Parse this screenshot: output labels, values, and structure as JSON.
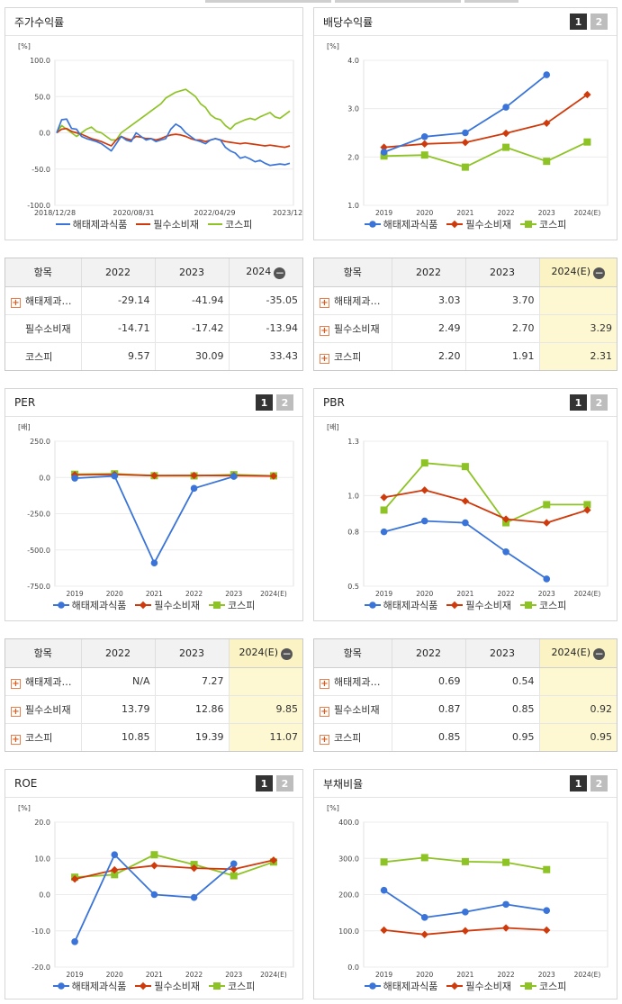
{
  "series_names": [
    "해태제과식품",
    "필수소비재",
    "코스피"
  ],
  "colors": {
    "company": "#3a74d8",
    "sector": "#cf3a0c",
    "index": "#8ec326"
  },
  "page_buttons": [
    "1",
    "2"
  ],
  "panels": {
    "stock": {
      "title": "주가수익률"
    },
    "dividend": {
      "title": "배당수익률"
    },
    "per": {
      "title": "PER"
    },
    "pbr": {
      "title": "PBR"
    },
    "roe": {
      "title": "ROE"
    },
    "debt": {
      "title": "부채비율"
    }
  },
  "tables": {
    "stock": {
      "headers": [
        "항목",
        "2022",
        "2023",
        "2024"
      ],
      "rows": [
        {
          "label": "해태제과…",
          "v": [
            "-29.14",
            "-41.94",
            "-35.05"
          ]
        },
        {
          "label": "필수소비재",
          "v": [
            "-14.71",
            "-17.42",
            "-13.94"
          ]
        },
        {
          "label": "코스피",
          "v": [
            "9.57",
            "30.09",
            "33.43"
          ]
        }
      ]
    },
    "dividend": {
      "headers": [
        "항목",
        "2022",
        "2023",
        "2024(E)"
      ],
      "rows": [
        {
          "label": "해태제과…",
          "v": [
            "3.03",
            "3.70",
            ""
          ]
        },
        {
          "label": "필수소비재",
          "v": [
            "2.49",
            "2.70",
            "3.29"
          ]
        },
        {
          "label": "코스피",
          "v": [
            "2.20",
            "1.91",
            "2.31"
          ]
        }
      ]
    },
    "per": {
      "headers": [
        "항목",
        "2022",
        "2023",
        "2024(E)"
      ],
      "rows": [
        {
          "label": "해태제과…",
          "v": [
            "N/A",
            "7.27",
            ""
          ]
        },
        {
          "label": "필수소비재",
          "v": [
            "13.79",
            "12.86",
            "9.85"
          ]
        },
        {
          "label": "코스피",
          "v": [
            "10.85",
            "19.39",
            "11.07"
          ]
        }
      ]
    },
    "pbr": {
      "headers": [
        "항목",
        "2022",
        "2023",
        "2024(E)"
      ],
      "rows": [
        {
          "label": "해태제과…",
          "v": [
            "0.69",
            "0.54",
            ""
          ]
        },
        {
          "label": "필수소비재",
          "v": [
            "0.87",
            "0.85",
            "0.92"
          ]
        },
        {
          "label": "코스피",
          "v": [
            "0.85",
            "0.95",
            "0.95"
          ]
        }
      ]
    }
  },
  "chart_data": [
    {
      "id": "stock",
      "type": "line",
      "title": "주가수익률",
      "ylabel": "[%]",
      "ylim": [
        -100,
        100
      ],
      "yticks": [
        "100.0",
        "50.0",
        "0.0",
        "-50.0",
        "-100.0"
      ],
      "xticks": [
        "2018/12/28",
        "2020/08/31",
        "2022/04/29",
        "2023/12/28"
      ],
      "series": [
        {
          "name": "해태제과식품",
          "values": [
            0,
            18,
            19,
            6,
            5,
            -5,
            -8,
            -10,
            -12,
            -15,
            -20,
            -25,
            -15,
            -5,
            -10,
            -12,
            0,
            -5,
            -10,
            -8,
            -12,
            -10,
            -8,
            5,
            12,
            8,
            0,
            -5,
            -10,
            -12,
            -15,
            -10,
            -8,
            -10,
            -20,
            -25,
            -28,
            -35,
            -33,
            -36,
            -40,
            -38,
            -42,
            -45,
            -44,
            -43,
            -44,
            -42
          ]
        },
        {
          "name": "필수소비재",
          "values": [
            0,
            5,
            6,
            2,
            0,
            -2,
            -5,
            -8,
            -10,
            -12,
            -15,
            -18,
            -10,
            -5,
            -8,
            -10,
            -5,
            -6,
            -8,
            -8,
            -10,
            -8,
            -5,
            -3,
            -2,
            -3,
            -5,
            -8,
            -10,
            -10,
            -12,
            -10,
            -8,
            -10,
            -12,
            -13,
            -14,
            -15,
            -14,
            -15,
            -16,
            -17,
            -18,
            -17,
            -18,
            -19,
            -20,
            -18
          ]
        },
        {
          "name": "코스피",
          "values": [
            0,
            10,
            5,
            0,
            -5,
            0,
            5,
            8,
            2,
            0,
            -5,
            -10,
            -10,
            0,
            5,
            10,
            15,
            20,
            25,
            30,
            35,
            40,
            48,
            52,
            56,
            58,
            60,
            55,
            50,
            40,
            35,
            25,
            20,
            18,
            10,
            5,
            12,
            15,
            18,
            20,
            18,
            22,
            25,
            28,
            22,
            20,
            25,
            30
          ]
        }
      ]
    },
    {
      "id": "dividend",
      "type": "line",
      "title": "배당수익률",
      "ylabel": "[%]",
      "ylim": [
        1.0,
        4.0
      ],
      "yticks": [
        "4.0",
        "3.0",
        "2.0",
        "1.0"
      ],
      "categories": [
        "2019",
        "2020",
        "2021",
        "2022",
        "2023",
        "2024(E)"
      ],
      "series": [
        {
          "name": "해태제과식품",
          "values": [
            2.1,
            2.42,
            2.5,
            3.03,
            3.7,
            null
          ]
        },
        {
          "name": "필수소비재",
          "values": [
            2.2,
            2.27,
            2.3,
            2.49,
            2.7,
            3.29
          ]
        },
        {
          "name": "코스피",
          "values": [
            2.02,
            2.04,
            1.79,
            2.2,
            1.91,
            2.31
          ]
        }
      ]
    },
    {
      "id": "per",
      "type": "line",
      "title": "PER",
      "ylabel": "[배]",
      "ylim": [
        -750,
        250
      ],
      "yticks": [
        "250.0",
        "0.0",
        "-250.0",
        "-500.0",
        "-750.0"
      ],
      "categories": [
        "2019",
        "2020",
        "2021",
        "2022",
        "2023",
        "2024(E)"
      ],
      "series": [
        {
          "name": "해태제과식품",
          "values": [
            -5,
            10,
            -590,
            -75,
            7.27,
            null
          ]
        },
        {
          "name": "필수소비재",
          "values": [
            18,
            20,
            13,
            13.79,
            12.86,
            9.85
          ]
        },
        {
          "name": "코스피",
          "values": [
            22,
            25,
            12,
            10.85,
            19.39,
            11.07
          ]
        }
      ]
    },
    {
      "id": "pbr",
      "type": "line",
      "title": "PBR",
      "ylabel": "[배]",
      "ylim": [
        0.5,
        1.3
      ],
      "yticks": [
        "1.3",
        "1.0",
        "0.8",
        "0.5"
      ],
      "categories": [
        "2019",
        "2020",
        "2021",
        "2022",
        "2023",
        "2024(E)"
      ],
      "series": [
        {
          "name": "해태제과식품",
          "values": [
            0.8,
            0.86,
            0.85,
            0.69,
            0.54,
            null
          ]
        },
        {
          "name": "필수소비재",
          "values": [
            0.99,
            1.03,
            0.97,
            0.87,
            0.85,
            0.92
          ]
        },
        {
          "name": "코스피",
          "values": [
            0.92,
            1.18,
            1.16,
            0.85,
            0.95,
            0.95
          ]
        }
      ]
    },
    {
      "id": "roe",
      "type": "line",
      "title": "ROE",
      "ylabel": "[%]",
      "ylim": [
        -20,
        20
      ],
      "yticks": [
        "20.0",
        "10.0",
        "0.0",
        "-10.0",
        "-20.0"
      ],
      "categories": [
        "2019",
        "2020",
        "2021",
        "2022",
        "2023",
        "2024(E)"
      ],
      "series": [
        {
          "name": "해태제과식품",
          "values": [
            -13,
            11,
            0,
            -0.8,
            8.5,
            null
          ]
        },
        {
          "name": "필수소비재",
          "values": [
            4.3,
            6.8,
            8,
            7.3,
            7,
            9.5
          ]
        },
        {
          "name": "코스피",
          "values": [
            4.8,
            5.5,
            11,
            8.3,
            5.2,
            9
          ]
        }
      ]
    },
    {
      "id": "debt",
      "type": "line",
      "title": "부채비율",
      "ylabel": "[%]",
      "ylim": [
        0,
        400
      ],
      "yticks": [
        "400.0",
        "300.0",
        "200.0",
        "100.0",
        "0.0"
      ],
      "categories": [
        "2019",
        "2020",
        "2021",
        "2022",
        "2023",
        "2024(E)"
      ],
      "series": [
        {
          "name": "해태제과식품",
          "values": [
            212,
            137,
            152,
            173,
            156,
            null
          ]
        },
        {
          "name": "필수소비재",
          "values": [
            102,
            90,
            100,
            108,
            102,
            null
          ]
        },
        {
          "name": "코스피",
          "values": [
            290,
            302,
            291,
            289,
            269,
            null
          ]
        }
      ]
    }
  ]
}
